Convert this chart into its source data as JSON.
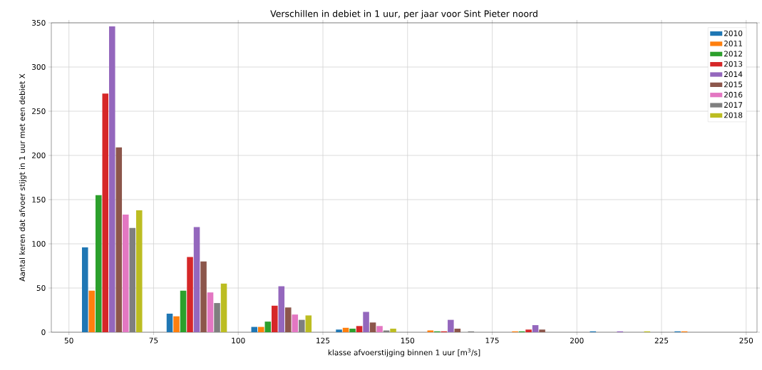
{
  "chart_data": {
    "type": "bar",
    "title": "Verschillen in debiet in 1 uur, per jaar voor Sint Pieter noord",
    "xlabel": "klasse afvoerstijging binnen 1 uur [m$^{3}$/s]",
    "ylabel": "Aantal keren dat afvoer stijgt in 1 uur met een debiet X",
    "x": [
      62.75,
      87.75,
      112.75,
      137.75,
      162.75,
      187.75,
      212.75,
      237.75
    ],
    "series": [
      {
        "name": "2010",
        "color": "#1f77b4",
        "values": [
          96,
          21,
          6,
          3,
          0,
          0,
          1,
          1
        ]
      },
      {
        "name": "2011",
        "color": "#ff7f0e",
        "values": [
          47,
          18,
          6,
          5,
          2,
          1,
          0,
          1
        ]
      },
      {
        "name": "2012",
        "color": "#2ca02c",
        "values": [
          155,
          47,
          12,
          4,
          1,
          1,
          0,
          0
        ]
      },
      {
        "name": "2013",
        "color": "#d62728",
        "values": [
          270,
          85,
          30,
          7,
          1,
          3,
          0,
          0
        ]
      },
      {
        "name": "2014",
        "color": "#9467bd",
        "values": [
          346,
          119,
          52,
          23,
          14,
          8,
          1,
          0
        ]
      },
      {
        "name": "2015",
        "color": "#8c564b",
        "values": [
          209,
          80,
          28,
          11,
          4,
          3,
          0,
          0
        ]
      },
      {
        "name": "2016",
        "color": "#e377c2",
        "values": [
          133,
          45,
          20,
          7,
          0,
          0,
          0,
          0
        ]
      },
      {
        "name": "2017",
        "color": "#7f7f7f",
        "values": [
          118,
          33,
          14,
          2,
          1,
          0,
          0,
          0
        ]
      },
      {
        "name": "2018",
        "color": "#bcbd22",
        "values": [
          138,
          55,
          19,
          4,
          0,
          0,
          1,
          0
        ]
      }
    ],
    "xlim": [
      44.8,
      253.2
    ],
    "ylim": [
      0,
      350
    ],
    "xticks": [
      50,
      75,
      100,
      125,
      150,
      175,
      200,
      225,
      250
    ],
    "yticks": [
      0,
      50,
      100,
      150,
      200,
      250,
      300,
      350
    ],
    "grid": true,
    "legend": "top right"
  }
}
